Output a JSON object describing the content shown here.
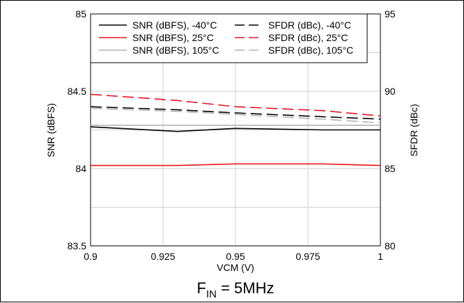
{
  "chart_data": {
    "type": "line",
    "caption_main": "F",
    "caption_sub": "IN",
    "caption_rest": " = 5MHz",
    "xlabel": "VCM (V)",
    "ylabel_left": "SNR (dBFS)",
    "ylabel_right": "SFDR (dBc)",
    "xlim": [
      0.9,
      1.0
    ],
    "ylim_left": [
      83.5,
      85
    ],
    "ylim_right": [
      80,
      95
    ],
    "x_ticks": [
      {
        "v": 0.9,
        "label": "0.9"
      },
      {
        "v": 0.925,
        "label": "0.925"
      },
      {
        "v": 0.95,
        "label": "0.95"
      },
      {
        "v": 0.975,
        "label": "0.975"
      },
      {
        "v": 1.0,
        "label": "1"
      }
    ],
    "y_left_ticks": [
      {
        "v": 83.5,
        "label": "83.5"
      },
      {
        "v": 84.0,
        "label": "84"
      },
      {
        "v": 84.5,
        "label": "84.5"
      },
      {
        "v": 85.0,
        "label": "85"
      }
    ],
    "y_right_ticks": [
      {
        "v": 80,
        "label": "80"
      },
      {
        "v": 85,
        "label": "85"
      },
      {
        "v": 90,
        "label": "90"
      },
      {
        "v": 95,
        "label": "95"
      }
    ],
    "grid": true,
    "grid_x": [
      0.9,
      0.925,
      0.95,
      0.975,
      1.0
    ],
    "grid_y_left": [
      83.5,
      83.75,
      84.0,
      84.25,
      84.5,
      84.75,
      85.0
    ],
    "legend_position": "top",
    "x": [
      0.9,
      0.93,
      0.95,
      0.98,
      1.0
    ],
    "series": [
      {
        "name": "SNR (dBFS), -40°C",
        "axis": "left",
        "color": "#000000",
        "dash": "solid",
        "values": [
          84.27,
          84.24,
          84.26,
          84.25,
          84.25
        ]
      },
      {
        "name": "SNR (dBFS), 25°C",
        "axis": "left",
        "color": "#e8141b",
        "dash": "solid",
        "values": [
          84.02,
          84.02,
          84.03,
          84.03,
          84.02
        ]
      },
      {
        "name": "SNR (dBFS), 105°C",
        "axis": "left",
        "color": "#b4b4b4",
        "dash": "solid",
        "values": [
          84.28,
          84.28,
          84.28,
          84.28,
          84.28
        ]
      },
      {
        "name": "SFDR (dBc), -40°C",
        "axis": "right",
        "color": "#000000",
        "dash": "dashed",
        "values": [
          89.0,
          88.8,
          88.6,
          88.35,
          88.2
        ]
      },
      {
        "name": "SFDR (dBc), 25°C",
        "axis": "right",
        "color": "#e8141b",
        "dash": "dashed",
        "values": [
          89.8,
          89.4,
          89.0,
          88.75,
          88.4
        ]
      },
      {
        "name": "SFDR (dBc), 105°C",
        "axis": "right",
        "color": "#b4b4b4",
        "dash": "dashed",
        "values": [
          88.9,
          88.7,
          88.5,
          88.2,
          87.95
        ]
      }
    ],
    "legend_columns": [
      [
        "SNR (dBFS), -40°C",
        "SNR (dBFS), 25°C",
        "SNR (dBFS), 105°C"
      ],
      [
        "SFDR (dBc), -40°C",
        "SFDR (dBc), 25°C",
        "SFDR (dBc), 105°C"
      ]
    ]
  }
}
